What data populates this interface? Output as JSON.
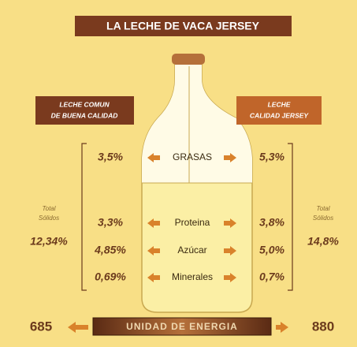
{
  "title": "LA LECHE DE VACA JERSEY",
  "left_header": [
    "LECHE COMUN",
    "DE BUENA CALIDAD"
  ],
  "right_header": [
    "LECHE",
    "CALIDAD JERSEY"
  ],
  "rows": [
    {
      "label": "GRASAS",
      "left": "3,5%",
      "right": "5,3%"
    },
    {
      "label": "Proteina",
      "left": "3,3%",
      "right": "3,8%"
    },
    {
      "label": "Azúcar",
      "left": "4,85%",
      "right": "5,0%"
    },
    {
      "label": "Minerales",
      "left": "0,69%",
      "right": "0,7%"
    }
  ],
  "left_total": {
    "label": [
      "Total",
      "Sólidos"
    ],
    "value": "12,34%"
  },
  "right_total": {
    "label": [
      "Total",
      "Sólidos"
    ],
    "value": "14,8%"
  },
  "energy": {
    "label": "UNIDAD DE ENERGIA",
    "left": "685",
    "right": "880"
  }
}
